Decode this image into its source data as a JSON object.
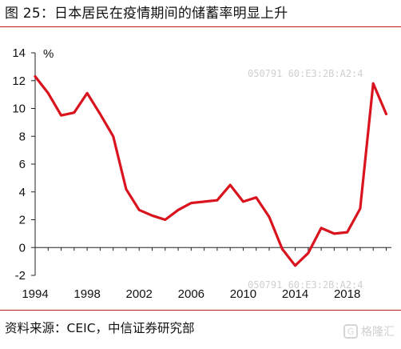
{
  "header": {
    "title": "图 25：日本居民在疫情期间的储蓄率明显上升"
  },
  "footer": {
    "source": "资料来源：CEIC，中信证券研究部"
  },
  "brand": {
    "icon_name": "gelonghui-logo-icon",
    "text": "格隆汇"
  },
  "watermark": {
    "id_text": "050791  60:E3:2B:A2:4"
  },
  "chart_data": {
    "type": "line",
    "title": "图 25：日本居民在疫情期间的储蓄率明显上升",
    "xlabel": "",
    "ylabel": "%",
    "unit_label": "%",
    "xlim": [
      1994,
      2021.4
    ],
    "ylim": [
      -2,
      14
    ],
    "x_ticks": [
      1994,
      1998,
      2002,
      2006,
      2010,
      2014,
      2018
    ],
    "y_ticks": [
      -2,
      0,
      2,
      4,
      6,
      8,
      10,
      12,
      14
    ],
    "grid": false,
    "legend": "none",
    "line_color": "#d9141e",
    "series": [
      {
        "name": "",
        "x": [
          1994,
          1995,
          1996,
          1997,
          1998,
          1999,
          2000,
          2001,
          2002,
          2003,
          2004,
          2005,
          2006,
          2007,
          2008,
          2009,
          2010,
          2011,
          2012,
          2013,
          2014,
          2015,
          2016,
          2017,
          2018,
          2019,
          2020,
          2021
        ],
        "y": [
          12.3,
          11.1,
          9.5,
          9.7,
          11.1,
          9.6,
          8.0,
          4.2,
          2.7,
          2.3,
          2.0,
          2.7,
          3.2,
          3.3,
          3.4,
          4.5,
          3.3,
          3.6,
          2.2,
          -0.1,
          -1.3,
          -0.4,
          1.4,
          1.0,
          1.1,
          2.8,
          11.8,
          9.6
        ]
      }
    ]
  }
}
